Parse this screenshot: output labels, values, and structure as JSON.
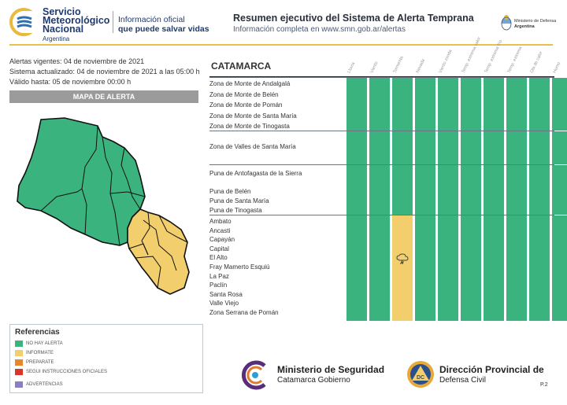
{
  "header": {
    "org_line1": "Servicio",
    "org_line2": "Meteorológico",
    "org_line3": "Nacional",
    "country": "Argentina",
    "slogan_line1": "Información oficial",
    "slogan_line2": "que puede salvar vidas",
    "title": "Resumen ejecutivo del Sistema de Alerta Temprana",
    "subtitle": "Información completa en www.smn.gob.ar/alertas",
    "ministry_line1": "Ministerio de Defensa",
    "ministry_line2": "Argentina"
  },
  "info": {
    "vigentes": "Alertas vigentes: 04 de noviembre de 2021",
    "actualizado": "Sistema actualizado: 04 de noviembre de 2021 a las 05:00 h",
    "valido": "Válido hasta: 05 de noviembre 00:00 h"
  },
  "map_title": "MAPA DE ALERTA",
  "references": {
    "title": "Referencias",
    "items": [
      {
        "label": "NO HAY ALERTA",
        "color": "#3bb37e"
      },
      {
        "label": "INFORMATE",
        "color": "#f2cf6c"
      },
      {
        "label": "PREPARATE",
        "color": "#e8862e"
      },
      {
        "label": "SEGUI INSTRUCCIONES OFICIALES",
        "color": "#d9352b"
      },
      {
        "label": "ADVERTENCIAS",
        "color": "#8a7fc4"
      }
    ]
  },
  "colors": {
    "green": "#3bb37e",
    "yellow": "#f2cf6c"
  },
  "table": {
    "province": "CATAMARCA",
    "columns": [
      "Lluvia",
      "Viento",
      "Tormenta",
      "Nevada",
      "Viento zonda",
      "Temp. extrema calor",
      "Temp. extrema frío",
      "Temp. extrema",
      "Ola de calor",
      "Humo"
    ],
    "groups": [
      {
        "zones": [
          "Zona de Monte de Andalgalá",
          "Zona de Monte de Belén",
          "Zona de Monte de Pomán",
          "Zona de Monte de Santa María",
          "Zona de Monte de Tinogasta"
        ],
        "levels": [
          "green",
          "green",
          "green",
          "green",
          "green",
          "green",
          "green",
          "green",
          "green",
          "green"
        ]
      },
      {
        "zones": [
          "Zona de Valles de Santa María"
        ],
        "levels": [
          "green",
          "green",
          "green",
          "green",
          "green",
          "green",
          "green",
          "green",
          "green",
          "green"
        ]
      },
      {
        "zones": [
          "Puna de Antofagasta de la Sierra",
          "Puna de Belén",
          "Puna de Santa María",
          "Puna de Tinogasta"
        ],
        "levels": [
          "green",
          "green",
          "green",
          "green",
          "green",
          "green",
          "green",
          "green",
          "green",
          "green"
        ]
      },
      {
        "zones": [
          "Ambato",
          "Ancasti",
          "Capayán",
          "Capital",
          "El Alto",
          "Fray Mamerto Esquiú",
          "La Paz",
          "Paclín",
          "Santa Rosa",
          "Valle Viejo",
          "Zona Serrana de Pomán"
        ],
        "levels": [
          "green",
          "green",
          "yellow",
          "green",
          "green",
          "green",
          "green",
          "green",
          "green",
          "green"
        ]
      }
    ]
  },
  "footer": {
    "ministerio_line1": "Ministerio de Seguridad",
    "ministerio_line2": "Catamarca Gobierno",
    "direccion_line1": "Dirección Provincial de",
    "direccion_line2": "Defensa Civil",
    "dc_badge": "DC",
    "page": "P.2"
  }
}
